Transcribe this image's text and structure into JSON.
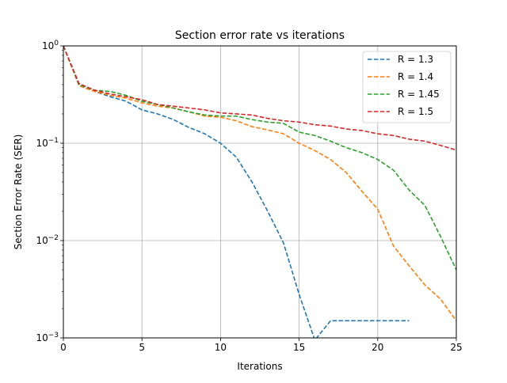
{
  "chart_data": {
    "type": "line",
    "title": "Section error rate vs iterations",
    "xlabel": "Iterations",
    "ylabel": "Section Error Rate (SER)",
    "xlim": [
      0,
      25
    ],
    "ylim": [
      0.001,
      1
    ],
    "yscale": "log",
    "grid": true,
    "legend_position": "top-right",
    "x_ticks": [
      0,
      5,
      10,
      15,
      20,
      25
    ],
    "y_ticks": [
      {
        "value": 0.001,
        "base": "10",
        "exp": "−3"
      },
      {
        "value": 0.01,
        "base": "10",
        "exp": "−2"
      },
      {
        "value": 0.1,
        "base": "10",
        "exp": "−1"
      },
      {
        "value": 1,
        "base": "10",
        "exp": "0"
      }
    ],
    "series": [
      {
        "name": "R = 1.3",
        "color": "#1f77b4",
        "x": [
          0,
          1,
          2,
          3,
          4,
          5,
          6,
          7,
          8,
          9,
          10,
          11,
          12,
          13,
          14,
          15,
          16,
          17,
          18,
          19,
          20,
          21,
          22
        ],
        "y": [
          1.0,
          0.39,
          0.34,
          0.3,
          0.27,
          0.22,
          0.2,
          0.175,
          0.145,
          0.125,
          0.1,
          0.072,
          0.04,
          0.02,
          0.0095,
          0.0028,
          0.00095,
          0.0015,
          0.0015,
          0.0015,
          0.0015,
          0.0015,
          0.0015
        ]
      },
      {
        "name": "R = 1.4",
        "color": "#ff7f0e",
        "x": [
          0,
          1,
          2,
          3,
          4,
          5,
          6,
          7,
          8,
          9,
          10,
          11,
          12,
          13,
          14,
          15,
          16,
          17,
          18,
          19,
          20,
          21,
          22,
          23,
          24,
          25
        ],
        "y": [
          1.0,
          0.39,
          0.34,
          0.31,
          0.29,
          0.26,
          0.24,
          0.23,
          0.21,
          0.19,
          0.185,
          0.17,
          0.148,
          0.137,
          0.125,
          0.1,
          0.084,
          0.068,
          0.05,
          0.032,
          0.021,
          0.0088,
          0.0055,
          0.0035,
          0.0025,
          0.0015
        ]
      },
      {
        "name": "R = 1.45",
        "color": "#2ca02c",
        "x": [
          0,
          1,
          2,
          3,
          4,
          5,
          6,
          7,
          8,
          9,
          10,
          11,
          12,
          13,
          14,
          15,
          16,
          17,
          18,
          19,
          20,
          21,
          22,
          23,
          24,
          25
        ],
        "y": [
          1.0,
          0.4,
          0.35,
          0.34,
          0.31,
          0.27,
          0.25,
          0.23,
          0.21,
          0.195,
          0.19,
          0.19,
          0.175,
          0.165,
          0.16,
          0.13,
          0.12,
          0.105,
          0.09,
          0.08,
          0.068,
          0.053,
          0.033,
          0.023,
          0.011,
          0.005
        ]
      },
      {
        "name": "R = 1.5",
        "color": "#d62728",
        "x": [
          0,
          1,
          2,
          3,
          4,
          5,
          6,
          7,
          8,
          9,
          10,
          11,
          12,
          13,
          14,
          15,
          16,
          17,
          18,
          19,
          20,
          21,
          22,
          23,
          24,
          25
        ],
        "y": [
          1.0,
          0.41,
          0.35,
          0.32,
          0.3,
          0.28,
          0.25,
          0.24,
          0.23,
          0.22,
          0.205,
          0.2,
          0.195,
          0.18,
          0.17,
          0.165,
          0.155,
          0.15,
          0.14,
          0.135,
          0.125,
          0.12,
          0.11,
          0.105,
          0.095,
          0.085
        ]
      }
    ]
  }
}
